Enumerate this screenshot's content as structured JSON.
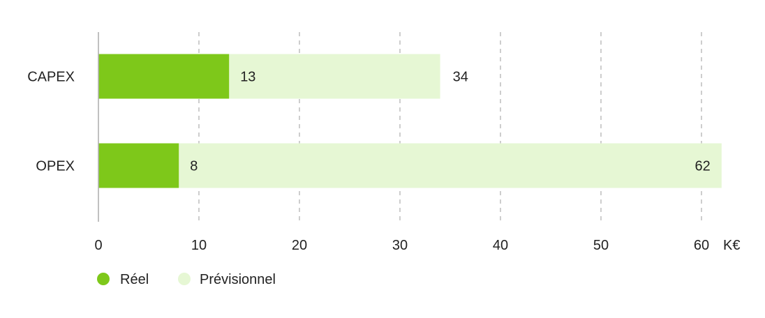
{
  "colors": {
    "actual": "#7ec81a",
    "forecast": "#e6f7d4",
    "grid": "#b8b8b8",
    "text": "#222222"
  },
  "chart_data": {
    "type": "bar",
    "orientation": "horizontal",
    "stacked": "overlay",
    "categories": [
      "CAPEX",
      "OPEX"
    ],
    "series": [
      {
        "name": "Réel",
        "values": [
          13,
          8
        ],
        "labels": [
          "13",
          "8"
        ]
      },
      {
        "name": "Prévisionnel",
        "values": [
          34,
          62
        ],
        "labels": [
          "34",
          "62"
        ]
      }
    ],
    "xlim": [
      0,
      60
    ],
    "xticks": [
      0,
      10,
      20,
      30,
      40,
      50,
      60
    ],
    "xtick_labels": [
      "0",
      "10",
      "20",
      "30",
      "40",
      "50",
      "60"
    ],
    "xunit": "K€",
    "grid": "vertical-dashed",
    "legend": "bottom-left"
  }
}
